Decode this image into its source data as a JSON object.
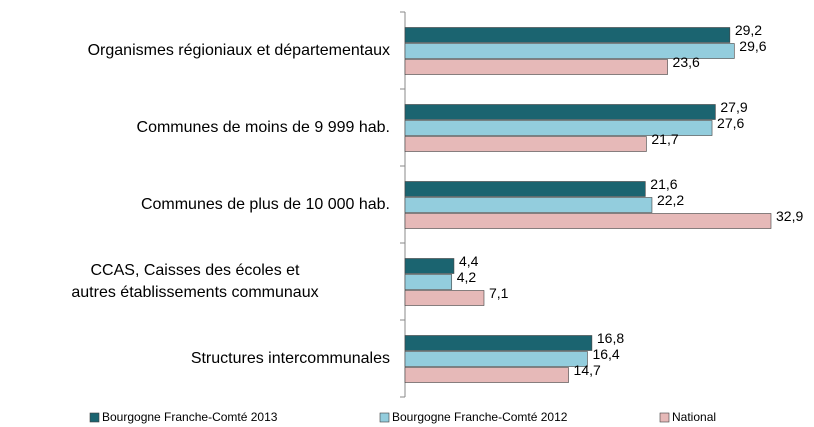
{
  "chart_data": {
    "type": "barh",
    "categories": [
      "Organismes régioniaux et départementaux",
      "Communes de moins de 9 999 hab.",
      "Communes de plus de 10 000 hab.",
      "CCAS, Caisses des écoles et autres établissements communaux",
      "Structures intercommunales"
    ],
    "series": [
      {
        "name": "Bourgogne Franche-Comté 2013",
        "color": "#1b6470",
        "values": [
          29.2,
          27.9,
          21.6,
          4.4,
          16.8
        ],
        "value_labels": [
          "29,2",
          "27,9",
          "21,6",
          "4,4",
          "16,8"
        ]
      },
      {
        "name": "Bourgogne Franche-Comté 2012",
        "color": "#93cddd",
        "values": [
          29.6,
          27.6,
          22.2,
          4.2,
          16.4
        ],
        "value_labels": [
          "29,6",
          "27,6",
          "22,2",
          "4,2",
          "16,4"
        ]
      },
      {
        "name": "National",
        "color": "#e6b9b8",
        "values": [
          23.6,
          21.7,
          32.9,
          7.1,
          14.7
        ],
        "value_labels": [
          "23,6",
          "21,7",
          "32,9",
          "7,1",
          "14,7"
        ]
      }
    ],
    "legend": "bottom"
  }
}
